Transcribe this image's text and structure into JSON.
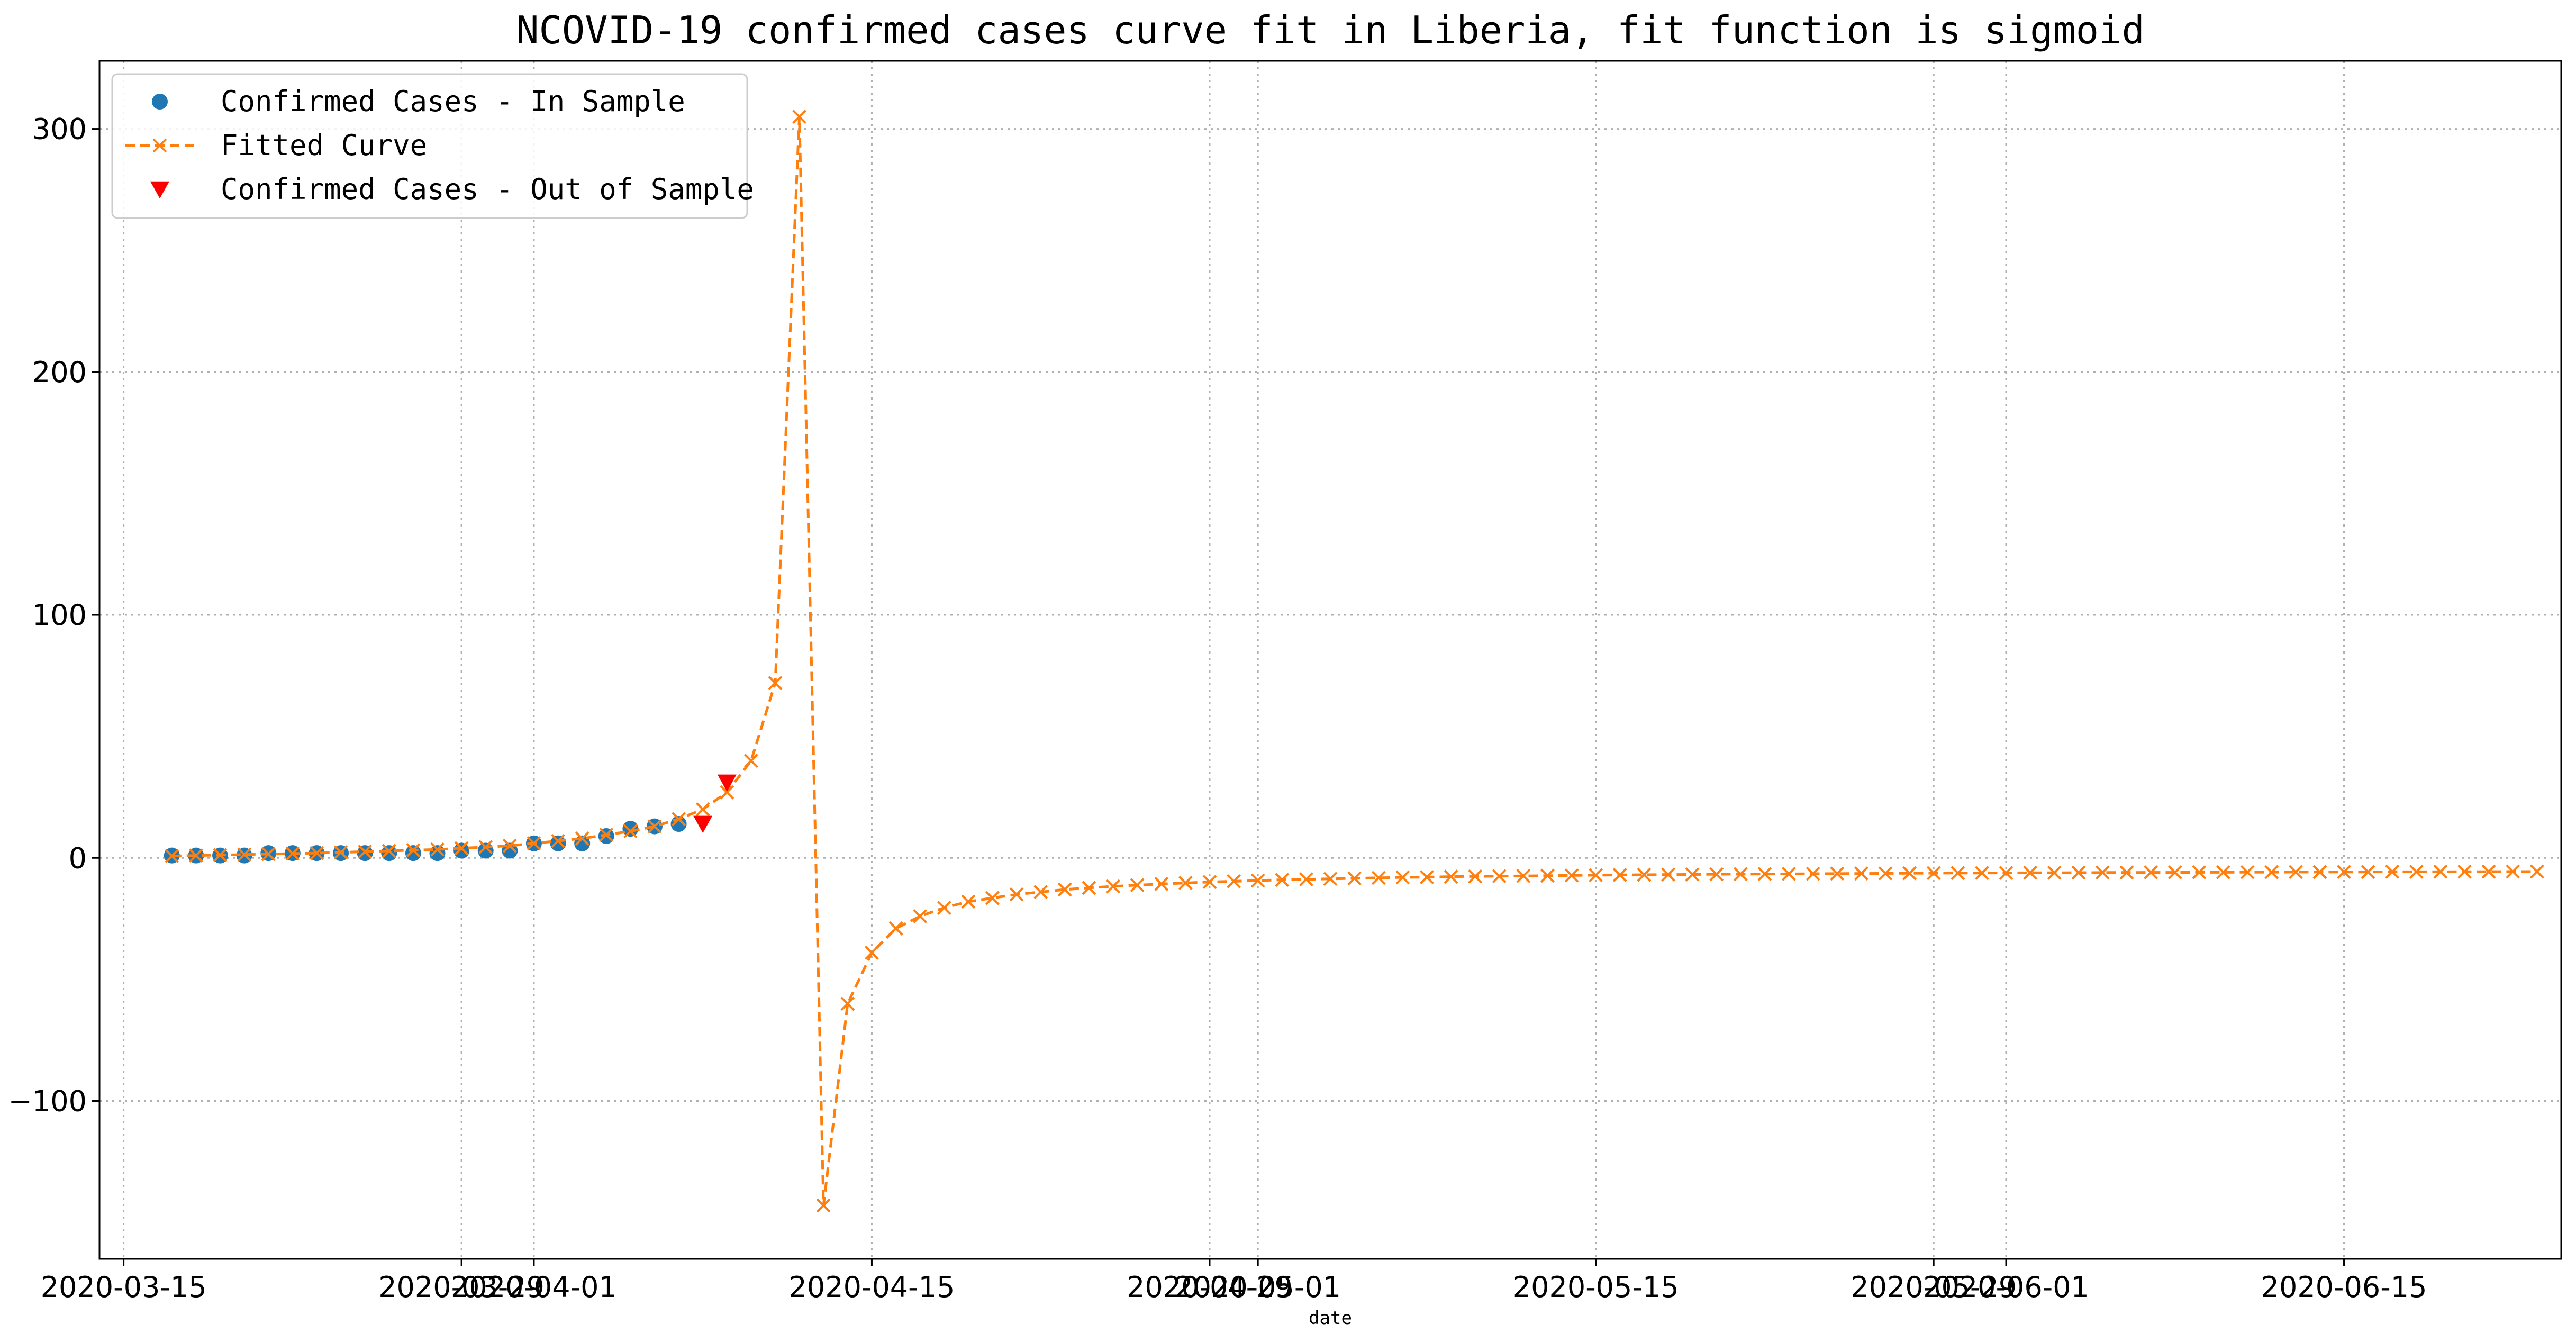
{
  "chart_data": {
    "type": "line",
    "title": "NCOVID-19 confirmed cases curve fit in Liberia, fit function is sigmoid",
    "xlabel": "date",
    "ylabel": "",
    "x_type": "date",
    "xlim": [
      "2020-03-14",
      "2020-06-24"
    ],
    "ylim": [
      -165,
      328
    ],
    "grid": true,
    "legend_position": "top-left",
    "x_tick_labels": [
      "2020-03-15",
      "2020-03-29",
      "2020-04-01",
      "2020-04-15",
      "2020-04-29",
      "2020-05-01",
      "2020-05-15",
      "2020-05-29",
      "2020-06-01",
      "2020-06-15"
    ],
    "y_ticks": [
      -100,
      0,
      100,
      200,
      300
    ],
    "y_tick_labels": [
      "−100",
      "0",
      "100",
      "200",
      "300"
    ],
    "series": [
      {
        "name": "Confirmed Cases - In Sample",
        "type": "scatter",
        "marker": "circle",
        "color": "#1f77b4",
        "points": [
          [
            "2020-03-17",
            1
          ],
          [
            "2020-03-18",
            1
          ],
          [
            "2020-03-19",
            1
          ],
          [
            "2020-03-20",
            1
          ],
          [
            "2020-03-21",
            2
          ],
          [
            "2020-03-22",
            2
          ],
          [
            "2020-03-23",
            2
          ],
          [
            "2020-03-24",
            2
          ],
          [
            "2020-03-25",
            2
          ],
          [
            "2020-03-26",
            2
          ],
          [
            "2020-03-27",
            2
          ],
          [
            "2020-03-28",
            2
          ],
          [
            "2020-03-29",
            3
          ],
          [
            "2020-03-30",
            3
          ],
          [
            "2020-03-31",
            3
          ],
          [
            "2020-04-01",
            6
          ],
          [
            "2020-04-02",
            6
          ],
          [
            "2020-04-03",
            6
          ],
          [
            "2020-04-04",
            9
          ],
          [
            "2020-04-05",
            12
          ],
          [
            "2020-04-06",
            13
          ],
          [
            "2020-04-07",
            14
          ]
        ]
      },
      {
        "name": "Fitted Curve",
        "type": "line",
        "marker": "x",
        "dashed": true,
        "color": "#ff7f0e",
        "points": [
          [
            "2020-03-17",
            0.8
          ],
          [
            "2020-03-18",
            1.0
          ],
          [
            "2020-03-19",
            1.2
          ],
          [
            "2020-03-20",
            1.4
          ],
          [
            "2020-03-21",
            1.6
          ],
          [
            "2020-03-22",
            1.8
          ],
          [
            "2020-03-23",
            2.0
          ],
          [
            "2020-03-24",
            2.3
          ],
          [
            "2020-03-25",
            2.6
          ],
          [
            "2020-03-26",
            2.9
          ],
          [
            "2020-03-27",
            3.2
          ],
          [
            "2020-03-28",
            3.5
          ],
          [
            "2020-03-29",
            4.0
          ],
          [
            "2020-03-30",
            4.5
          ],
          [
            "2020-03-31",
            5.0
          ],
          [
            "2020-04-01",
            6.0
          ],
          [
            "2020-04-02",
            7.0
          ],
          [
            "2020-04-03",
            8.0
          ],
          [
            "2020-04-04",
            9.5
          ],
          [
            "2020-04-05",
            11
          ],
          [
            "2020-04-06",
            13
          ],
          [
            "2020-04-07",
            16
          ],
          [
            "2020-04-08",
            20
          ],
          [
            "2020-04-09",
            27
          ],
          [
            "2020-04-10",
            40
          ],
          [
            "2020-04-11",
            72
          ],
          [
            "2020-04-12",
            305
          ],
          [
            "2020-04-13",
            -143
          ],
          [
            "2020-04-14",
            -60
          ],
          [
            "2020-04-15",
            -39
          ],
          [
            "2020-04-16",
            -29
          ],
          [
            "2020-04-17",
            -24
          ],
          [
            "2020-04-18",
            -20.5
          ],
          [
            "2020-04-19",
            -18
          ],
          [
            "2020-04-20",
            -16.5
          ],
          [
            "2020-04-21",
            -15
          ],
          [
            "2020-04-22",
            -14
          ],
          [
            "2020-04-23",
            -13
          ],
          [
            "2020-04-24",
            -12.3
          ],
          [
            "2020-04-25",
            -11.7
          ],
          [
            "2020-04-26",
            -11.2
          ],
          [
            "2020-04-27",
            -10.7
          ],
          [
            "2020-04-28",
            -10.3
          ],
          [
            "2020-04-29",
            -9.9
          ],
          [
            "2020-04-30",
            -9.6
          ],
          [
            "2020-05-01",
            -9.3
          ],
          [
            "2020-05-02",
            -9.0
          ],
          [
            "2020-05-03",
            -8.8
          ],
          [
            "2020-05-04",
            -8.6
          ],
          [
            "2020-05-05",
            -8.4
          ],
          [
            "2020-05-06",
            -8.2
          ],
          [
            "2020-05-07",
            -8.0
          ],
          [
            "2020-05-08",
            -7.9
          ],
          [
            "2020-05-09",
            -7.7
          ],
          [
            "2020-05-10",
            -7.6
          ],
          [
            "2020-05-11",
            -7.5
          ],
          [
            "2020-05-12",
            -7.4
          ],
          [
            "2020-05-13",
            -7.3
          ],
          [
            "2020-05-14",
            -7.2
          ],
          [
            "2020-05-15",
            -7.1
          ],
          [
            "2020-05-16",
            -7.0
          ],
          [
            "2020-05-17",
            -6.9
          ],
          [
            "2020-05-18",
            -6.85
          ],
          [
            "2020-05-19",
            -6.8
          ],
          [
            "2020-05-20",
            -6.7
          ],
          [
            "2020-05-21",
            -6.65
          ],
          [
            "2020-05-22",
            -6.6
          ],
          [
            "2020-05-23",
            -6.55
          ],
          [
            "2020-05-24",
            -6.5
          ],
          [
            "2020-05-25",
            -6.45
          ],
          [
            "2020-05-26",
            -6.4
          ],
          [
            "2020-05-27",
            -6.35
          ],
          [
            "2020-05-28",
            -6.3
          ],
          [
            "2020-05-29",
            -6.25
          ],
          [
            "2020-05-30",
            -6.2
          ],
          [
            "2020-05-31",
            -6.2
          ],
          [
            "2020-06-01",
            -6.15
          ],
          [
            "2020-06-02",
            -6.1
          ],
          [
            "2020-06-03",
            -6.1
          ],
          [
            "2020-06-04",
            -6.05
          ],
          [
            "2020-06-05",
            -6.0
          ],
          [
            "2020-06-06",
            -6.0
          ],
          [
            "2020-06-07",
            -5.95
          ],
          [
            "2020-06-08",
            -5.95
          ],
          [
            "2020-06-09",
            -5.9
          ],
          [
            "2020-06-10",
            -5.9
          ],
          [
            "2020-06-11",
            -5.85
          ],
          [
            "2020-06-12",
            -5.85
          ],
          [
            "2020-06-13",
            -5.8
          ],
          [
            "2020-06-14",
            -5.8
          ],
          [
            "2020-06-15",
            -5.75
          ],
          [
            "2020-06-16",
            -5.75
          ],
          [
            "2020-06-17",
            -5.7
          ],
          [
            "2020-06-18",
            -5.7
          ],
          [
            "2020-06-19",
            -5.7
          ],
          [
            "2020-06-20",
            -5.65
          ],
          [
            "2020-06-21",
            -5.65
          ],
          [
            "2020-06-22",
            -5.6
          ],
          [
            "2020-06-23",
            -5.6
          ]
        ]
      },
      {
        "name": "Confirmed Cases - Out of Sample",
        "type": "scatter",
        "marker": "triangle-down",
        "color": "#ff0000",
        "points": [
          [
            "2020-04-08",
            14
          ],
          [
            "2020-04-09",
            31
          ]
        ]
      }
    ]
  }
}
